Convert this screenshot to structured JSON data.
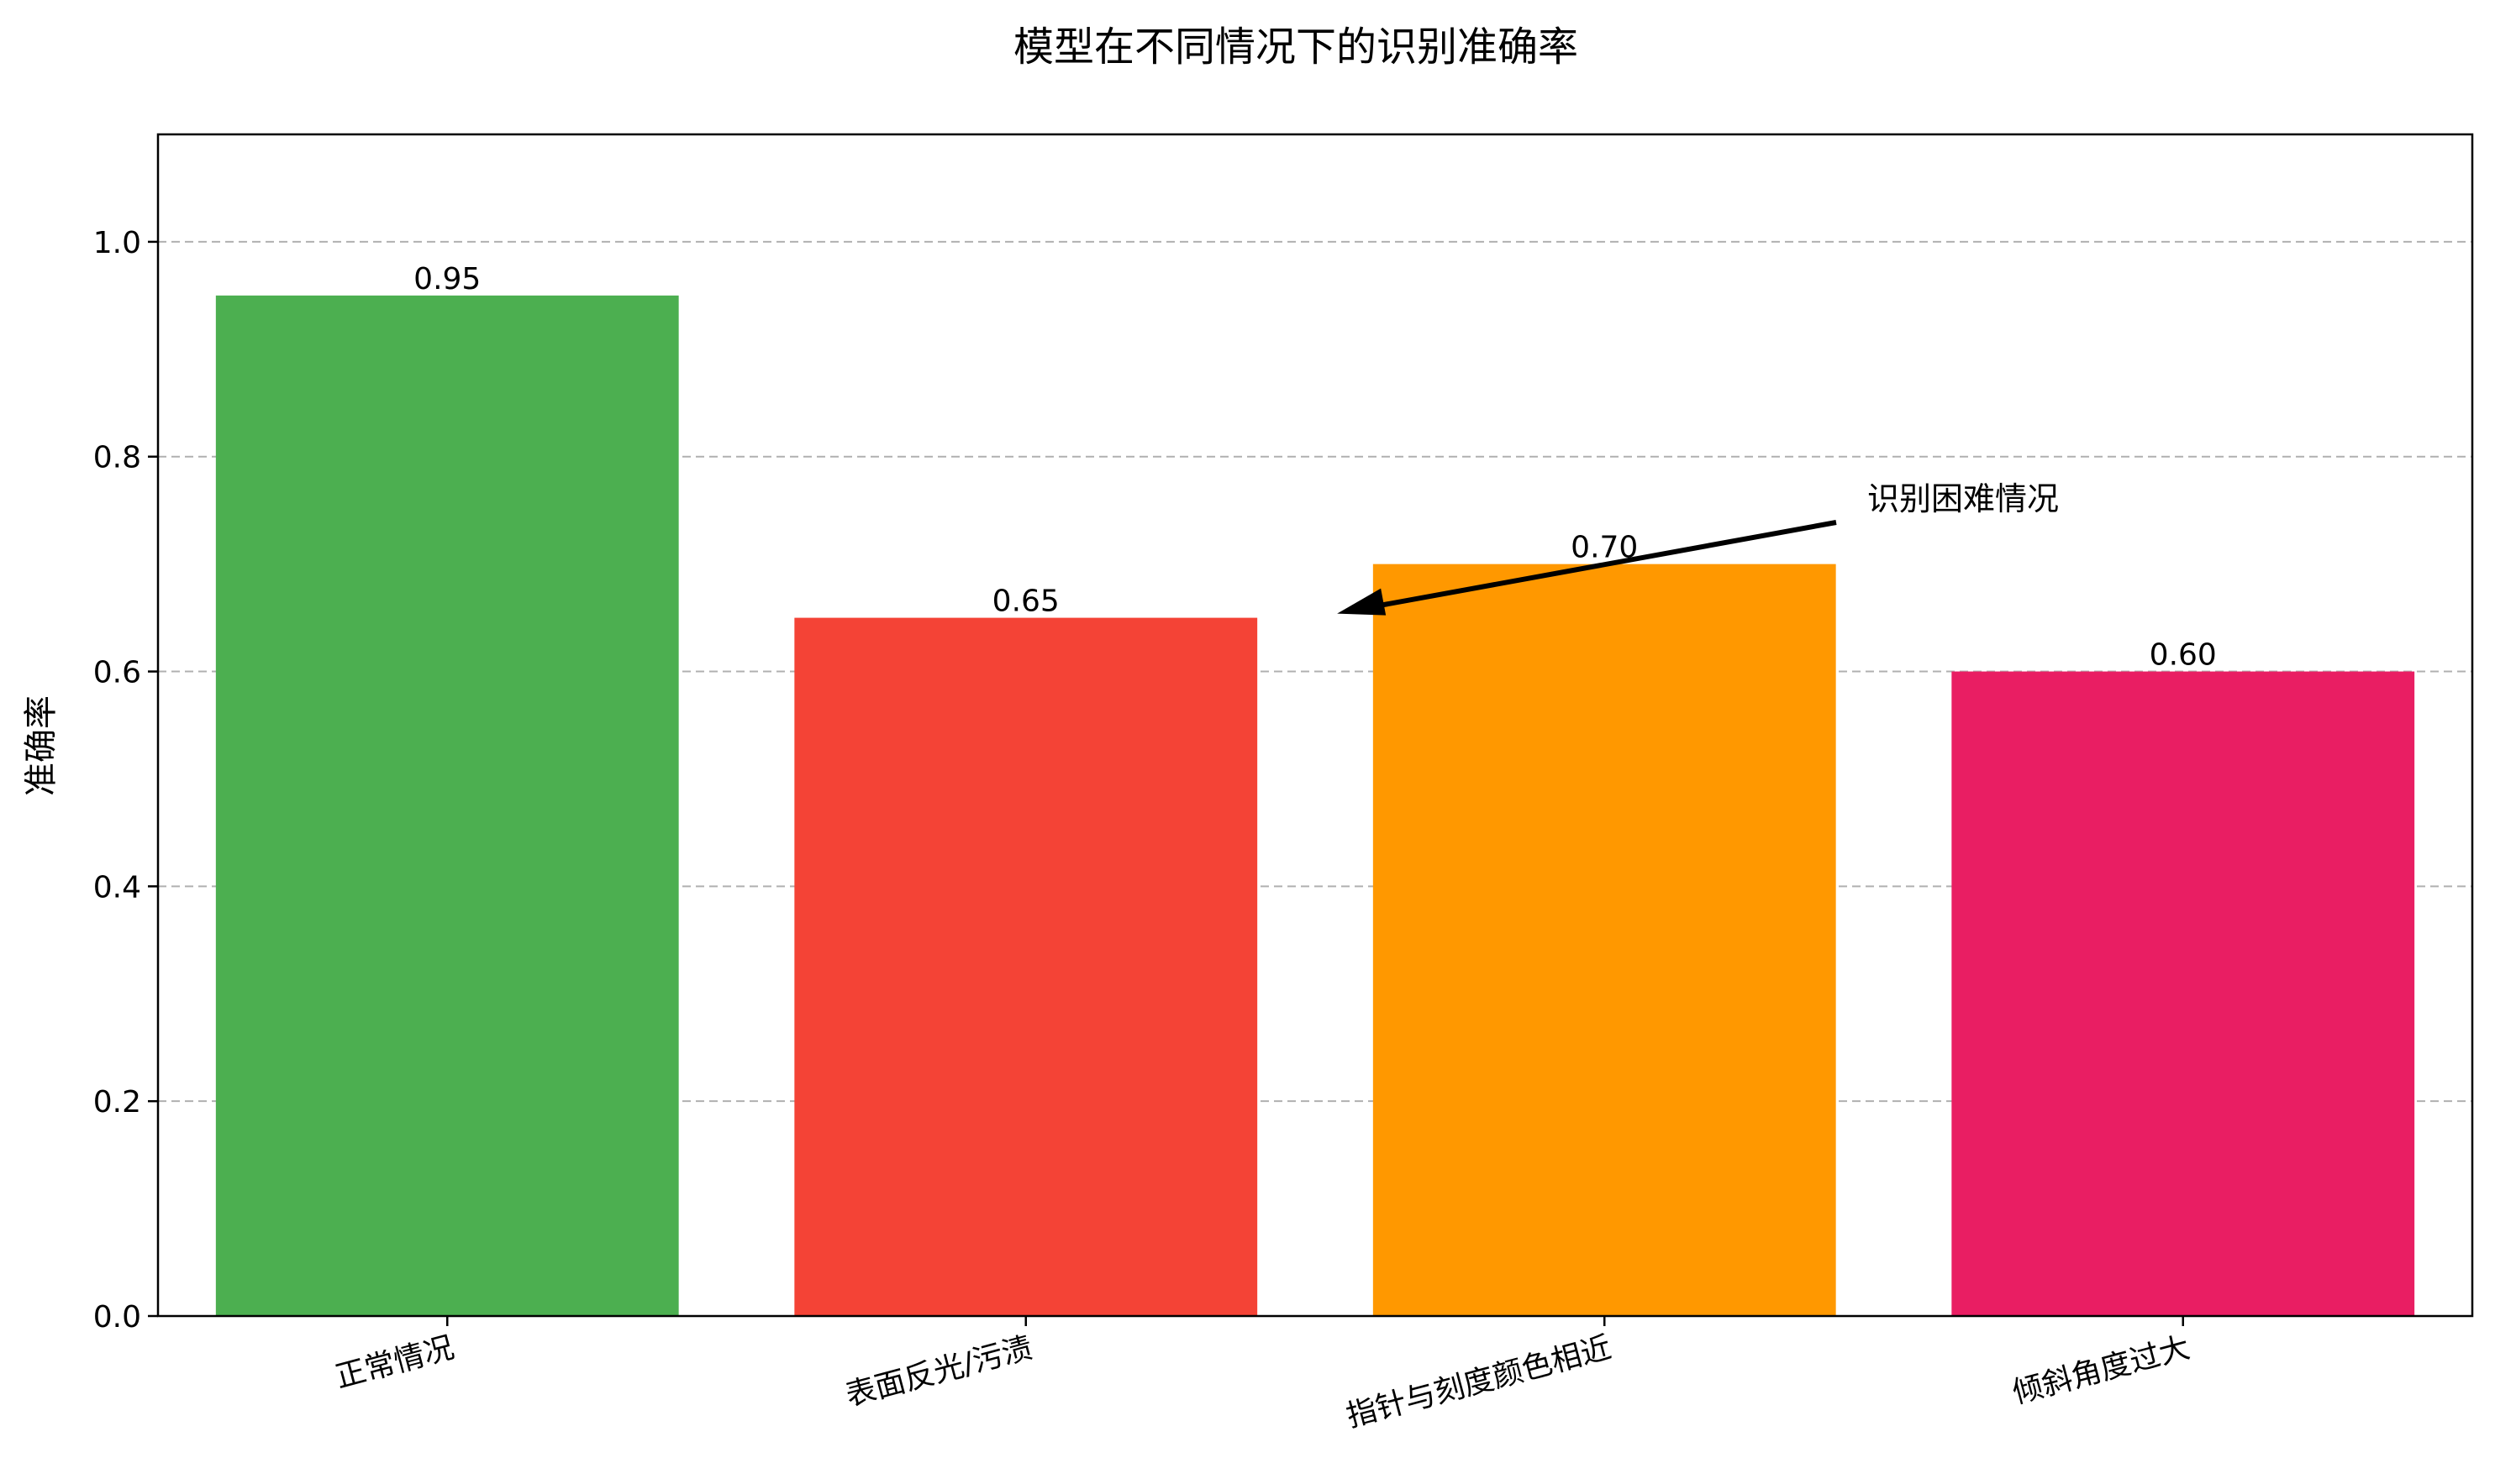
{
  "chart_data": {
    "type": "bar",
    "title": "模型在不同情况下的识别准确率",
    "xlabel": "",
    "ylabel": "准确率",
    "categories": [
      "正常情况",
      "表面反光/污渍",
      "指针与刻度颜色相近",
      "倾斜角度过大"
    ],
    "values": [
      0.95,
      0.65,
      0.7,
      0.6
    ],
    "value_labels": [
      "0.95",
      "0.65",
      "0.70",
      "0.60"
    ],
    "colors": [
      "#4caf50",
      "#f44336",
      "#ff9800",
      "#e91e63"
    ],
    "ylim": [
      0,
      1.1
    ],
    "yticks": [
      0.0,
      0.2,
      0.4,
      0.6,
      0.8,
      1.0
    ],
    "ytick_labels": [
      "0.0",
      "0.2",
      "0.4",
      "0.6",
      "0.8",
      "1.0"
    ],
    "grid": "y-dashed",
    "annotation": {
      "text": "识别困难情况",
      "target_category_index": 1,
      "target_value": 0.65
    }
  }
}
